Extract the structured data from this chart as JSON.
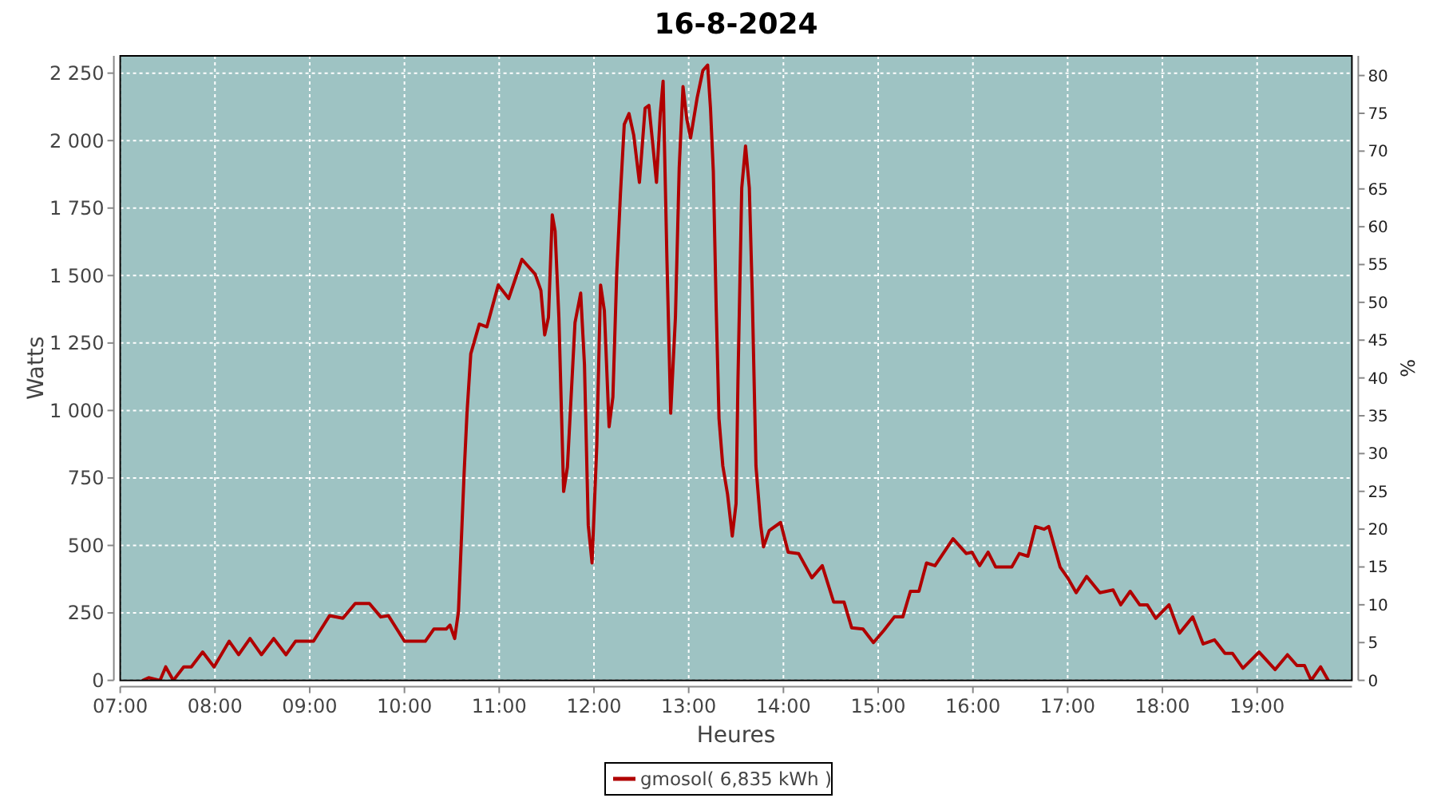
{
  "chart_data": {
    "type": "line",
    "title": "16-8-2024",
    "xlabel": "Heures",
    "ylabel": "Watts",
    "y2label": "%",
    "xlim": [
      7,
      20
    ],
    "xticks": [
      {
        "value": 7,
        "label": "07:00"
      },
      {
        "value": 8,
        "label": "08:00"
      },
      {
        "value": 9,
        "label": "09:00"
      },
      {
        "value": 10,
        "label": "10:00"
      },
      {
        "value": 11,
        "label": "11:00"
      },
      {
        "value": 12,
        "label": "12:00"
      },
      {
        "value": 13,
        "label": "13:00"
      },
      {
        "value": 14,
        "label": "14:00"
      },
      {
        "value": 15,
        "label": "15:00"
      },
      {
        "value": 16,
        "label": "16:00"
      },
      {
        "value": 17,
        "label": "17:00"
      },
      {
        "value": 18,
        "label": "18:00"
      },
      {
        "value": 19,
        "label": "19:00"
      }
    ],
    "ylim": [
      0,
      2314
    ],
    "yticks": [
      0,
      250,
      500,
      750,
      {
        "value": 1000,
        "label": "1 000"
      },
      {
        "value": 1250,
        "label": "1 250"
      },
      {
        "value": 1500,
        "label": "1 500"
      },
      {
        "value": 1750,
        "label": "1 750"
      },
      {
        "value": 2000,
        "label": "2 000"
      },
      {
        "value": 2250,
        "label": "2 250"
      }
    ],
    "y2lim": [
      0,
      82.6
    ],
    "y2ticks": [
      0,
      5,
      10,
      15,
      20,
      25,
      30,
      35,
      40,
      45,
      50,
      55,
      60,
      65,
      70,
      75,
      80
    ],
    "grid": true,
    "legend": "bottom",
    "series": [
      {
        "name": "gmosol( 6,835 kWh )",
        "color": "#b00000",
        "x": [
          7.24,
          7.3,
          7.42,
          7.48,
          7.56,
          7.67,
          7.75,
          7.87,
          7.99,
          8.15,
          8.25,
          8.37,
          8.49,
          8.62,
          8.75,
          8.85,
          9.04,
          9.21,
          9.35,
          9.48,
          9.63,
          9.75,
          9.83,
          10,
          10.22,
          10.31,
          10.44,
          10.48,
          10.53,
          10.57,
          10.6,
          10.63,
          10.66,
          10.7,
          10.79,
          10.87,
          10.99,
          11.1,
          11.24,
          11.38,
          11.44,
          11.48,
          11.52,
          11.56,
          11.59,
          11.63,
          11.68,
          11.72,
          11.8,
          11.86,
          11.9,
          11.94,
          11.98,
          12.03,
          12.07,
          12.11,
          12.16,
          12.2,
          12.24,
          12.28,
          12.32,
          12.37,
          12.42,
          12.48,
          12.54,
          12.58,
          12.62,
          12.66,
          12.7,
          12.73,
          12.77,
          12.81,
          12.86,
          12.9,
          12.94,
          12.98,
          13.02,
          13.09,
          13.15,
          13.2,
          13.23,
          13.26,
          13.29,
          13.32,
          13.36,
          13.41,
          13.46,
          13.5,
          13.52,
          13.56,
          13.6,
          13.64,
          13.67,
          13.71,
          13.76,
          13.79,
          13.85,
          13.97,
          14.05,
          14.16,
          14.3,
          14.41,
          14.53,
          14.64,
          14.72,
          14.84,
          14.95,
          15.06,
          15.17,
          15.26,
          15.34,
          15.43,
          15.51,
          15.6,
          15.79,
          15.93,
          15.99,
          16.07,
          16.16,
          16.24,
          16.41,
          16.49,
          16.58,
          16.66,
          16.75,
          16.8,
          16.92,
          17,
          17.09,
          17.2,
          17.34,
          17.48,
          17.56,
          17.66,
          17.76,
          17.84,
          17.93,
          18.07,
          18.18,
          18.32,
          18.43,
          18.55,
          18.66,
          18.74,
          18.85,
          19.02,
          19.19,
          19.32,
          19.42,
          19.5,
          19.57,
          19.67,
          19.75
        ],
        "values": [
          0,
          10,
          0,
          50,
          0,
          50,
          50,
          105,
          50,
          145,
          95,
          155,
          95,
          155,
          95,
          145,
          145,
          240,
          230,
          285,
          285,
          235,
          240,
          145,
          145,
          190,
          190,
          205,
          155,
          255,
          515,
          770,
          990,
          1210,
          1320,
          1310,
          1465,
          1415,
          1560,
          1505,
          1445,
          1280,
          1345,
          1725,
          1665,
          1345,
          700,
          790,
          1325,
          1435,
          1170,
          575,
          435,
          870,
          1465,
          1370,
          940,
          1050,
          1505,
          1805,
          2060,
          2100,
          2020,
          1845,
          2120,
          2130,
          1990,
          1845,
          2100,
          2220,
          1565,
          990,
          1345,
          1900,
          2200,
          2080,
          2010,
          2160,
          2260,
          2280,
          2120,
          1885,
          1385,
          970,
          795,
          690,
          535,
          655,
          1110,
          1825,
          1980,
          1825,
          1445,
          795,
          575,
          495,
          555,
          585,
          475,
          470,
          380,
          425,
          290,
          290,
          195,
          190,
          140,
          185,
          235,
          235,
          330,
          330,
          435,
          425,
          525,
          470,
          475,
          425,
          475,
          420,
          420,
          470,
          460,
          570,
          560,
          570,
          420,
          380,
          325,
          385,
          325,
          335,
          280,
          330,
          280,
          280,
          230,
          280,
          175,
          235,
          135,
          150,
          100,
          100,
          45,
          105,
          40,
          95,
          55,
          55,
          0,
          50,
          0
        ]
      }
    ]
  }
}
